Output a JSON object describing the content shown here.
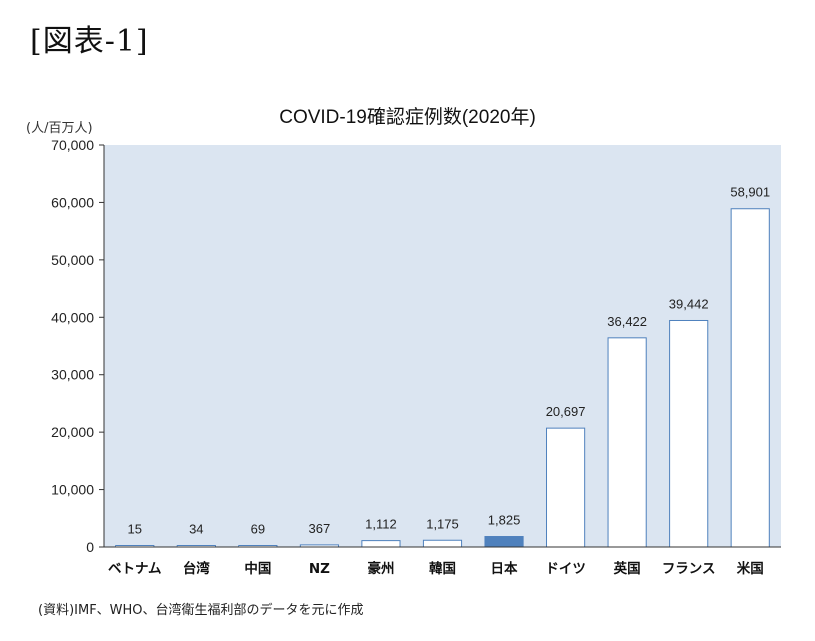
{
  "figure_label": "[図表-1]",
  "source_note": "(資料)IMF、WHO、台湾衛生福利部のデータを元に作成",
  "chart_data": {
    "type": "bar",
    "title": "COVID-19確認症例数(2020年)",
    "ylabel": "(人/百万人)",
    "xlabel": "",
    "ylim": [
      0,
      70000
    ],
    "yticks": [
      0,
      10000,
      20000,
      30000,
      40000,
      50000,
      60000,
      70000
    ],
    "ytick_labels": [
      "0",
      "10,000",
      "20,000",
      "30,000",
      "40,000",
      "50,000",
      "60,000",
      "70,000"
    ],
    "categories": [
      "ベトナム",
      "台湾",
      "中国",
      "NZ",
      "豪州",
      "韓国",
      "日本",
      "ドイツ",
      "英国",
      "フランス",
      "米国"
    ],
    "values": [
      15,
      34,
      69,
      367,
      1112,
      1175,
      1825,
      20697,
      36422,
      39442,
      58901
    ],
    "value_labels": [
      "15",
      "34",
      "69",
      "367",
      "1,112",
      "1,175",
      "1,825",
      "20,697",
      "36,422",
      "39,442",
      "58,901"
    ],
    "highlight_category": "日本",
    "grid": false,
    "colors": {
      "plot_background": "#dbe5f1",
      "bar_fill": "#ffffff",
      "bar_stroke": "#4f81bd",
      "highlight_fill": "#4f81bd"
    }
  }
}
